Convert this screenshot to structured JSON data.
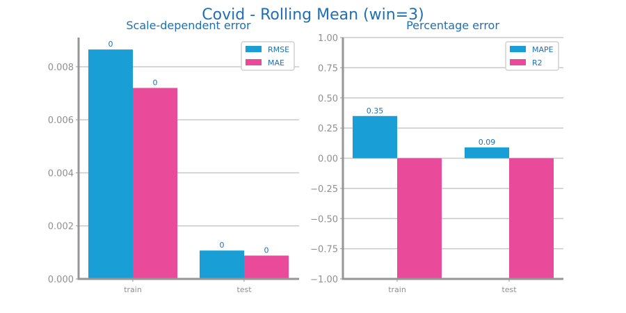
{
  "figure": {
    "title": "Covid - Rolling Mean (win=3)"
  },
  "colors": {
    "title": "#1f6fb2",
    "series_1": "#199fd6",
    "series_2": "#ea4a9a",
    "grid": "#c8c8c8",
    "axis": "#969696",
    "tick_text": "#8f8f8f"
  },
  "chart_data": [
    {
      "type": "bar",
      "title": "Scale-dependent error",
      "categories": [
        "train",
        "test"
      ],
      "series": [
        {
          "name": "RMSE",
          "values": [
            0.00865,
            0.00107
          ],
          "labels": [
            "0",
            "0"
          ]
        },
        {
          "name": "MAE",
          "values": [
            0.0072,
            0.00088
          ],
          "labels": [
            "0",
            "0"
          ]
        }
      ],
      "ylim": [
        0,
        0.0091
      ],
      "yticks": [
        0.0,
        0.002,
        0.004,
        0.006,
        0.008
      ],
      "ytick_labels": [
        "0.000",
        "0.002",
        "0.004",
        "0.006",
        "0.008"
      ],
      "grid": true,
      "legend": "top-right"
    },
    {
      "type": "bar",
      "title": "Percentage error",
      "categories": [
        "train",
        "test"
      ],
      "series": [
        {
          "name": "MAPE",
          "values": [
            0.35,
            0.09
          ],
          "labels": [
            "0.35",
            "0.09"
          ]
        },
        {
          "name": "R2",
          "values": [
            -1.0,
            -1.0
          ],
          "labels": [
            null,
            null
          ]
        }
      ],
      "ylim": [
        -1.0,
        1.0
      ],
      "yticks": [
        -1.0,
        -0.75,
        -0.5,
        -0.25,
        0.0,
        0.25,
        0.5,
        0.75,
        1.0
      ],
      "ytick_labels": [
        "−1.00",
        "−0.75",
        "−0.50",
        "−0.25",
        "0.00",
        "0.25",
        "0.50",
        "0.75",
        "1.00"
      ],
      "grid": true,
      "legend": "top-right"
    }
  ]
}
